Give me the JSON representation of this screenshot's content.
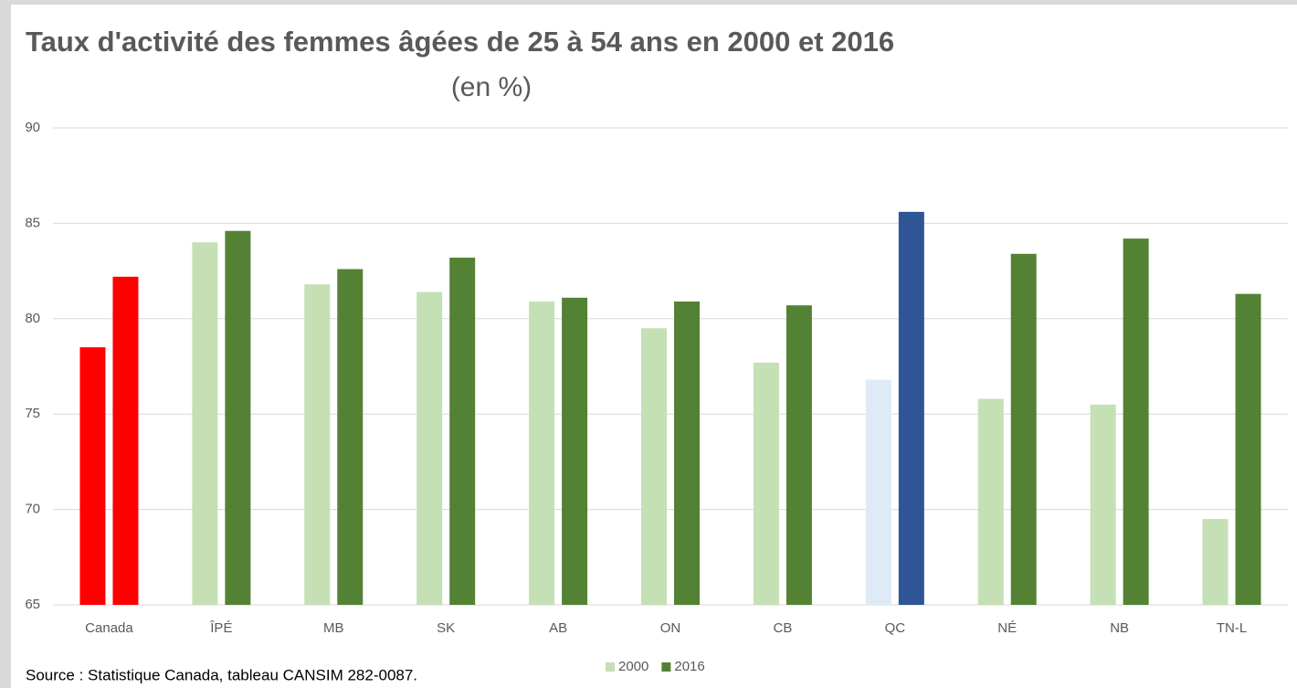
{
  "chart_data": {
    "type": "bar",
    "title": "Taux d'activité des femmes âgées de 25 à 54 ans en 2000 et 2016",
    "subtitle": "(en %)",
    "source": "Source : Statistique Canada, tableau CANSIM 282-0087.",
    "categories": [
      "Canada",
      "ÎPÉ",
      "MB",
      "SK",
      "AB",
      "ON",
      "CB",
      "QC",
      "NÉ",
      "NB",
      "TN-L"
    ],
    "series": [
      {
        "name": "2000",
        "color": "#c5e0b4",
        "colors": [
          "#ff0000",
          "#c5e0b4",
          "#c5e0b4",
          "#c5e0b4",
          "#c5e0b4",
          "#c5e0b4",
          "#c5e0b4",
          "#deebf7",
          "#c5e0b4",
          "#c5e0b4",
          "#c5e0b4"
        ],
        "values": [
          78.5,
          84.0,
          81.8,
          81.4,
          80.9,
          79.5,
          77.7,
          76.8,
          75.8,
          75.5,
          69.5
        ]
      },
      {
        "name": "2016",
        "color": "#548235",
        "colors": [
          "#ff0000",
          "#548235",
          "#548235",
          "#548235",
          "#548235",
          "#548235",
          "#548235",
          "#2f5597",
          "#548235",
          "#548235",
          "#548235"
        ],
        "values": [
          82.2,
          84.6,
          82.6,
          83.2,
          81.1,
          80.9,
          80.7,
          85.6,
          83.4,
          84.2,
          81.3
        ]
      }
    ],
    "ylim": [
      65,
      90
    ],
    "yticks": [
      65,
      70,
      75,
      80,
      85,
      90
    ],
    "grid": true,
    "legend": "bottom"
  }
}
